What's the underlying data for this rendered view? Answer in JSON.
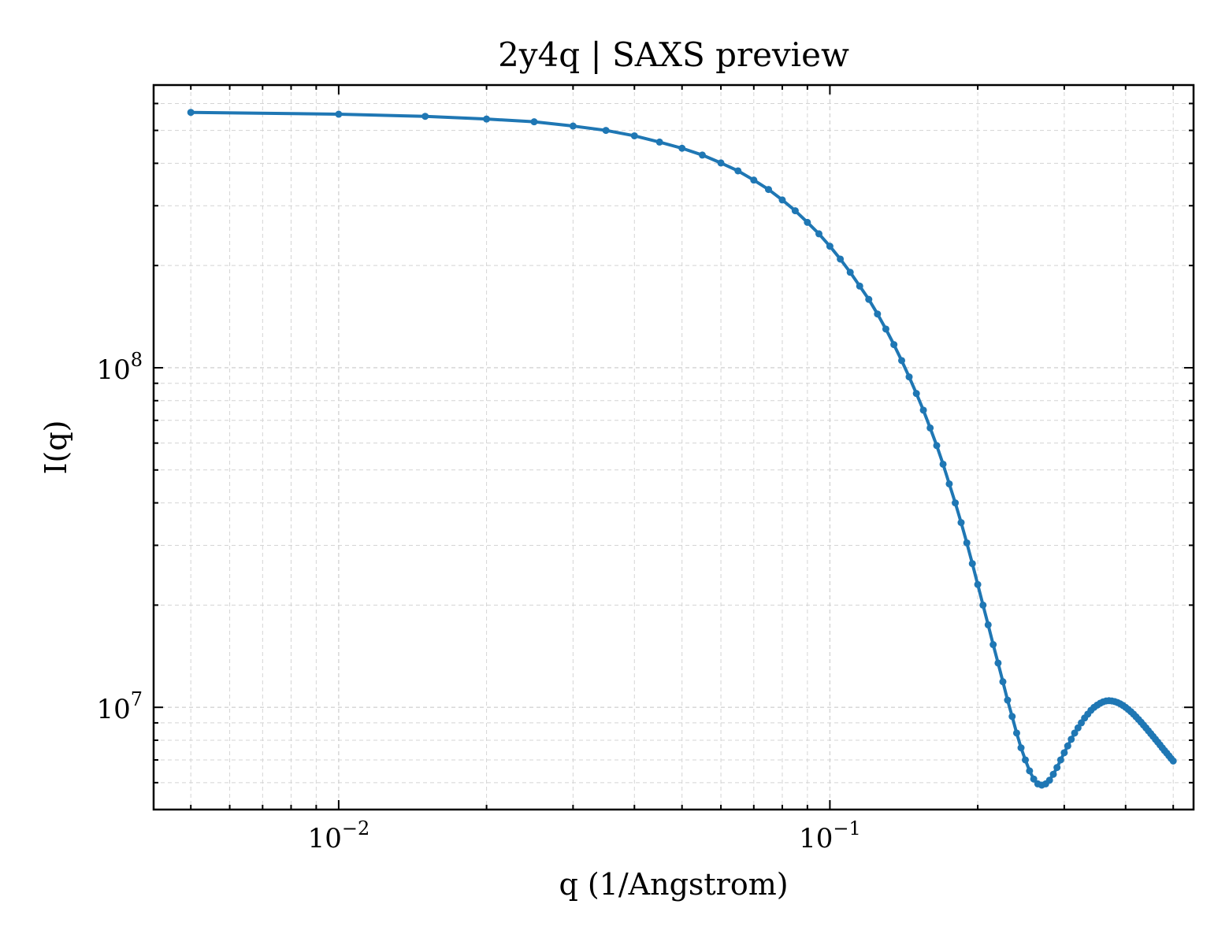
{
  "chart_data": {
    "type": "line",
    "title": "2y4q | SAXS preview",
    "xlabel": "q (1/Angstrom)",
    "ylabel": "I(q)",
    "xscale": "log",
    "yscale": "log",
    "xlim": [
      0.0042,
      0.55
    ],
    "ylim": [
      5000000,
      680000000
    ],
    "grid": true,
    "x_tick_labels": [
      {
        "value": 0.01,
        "base": "10",
        "exp": "−2"
      },
      {
        "value": 0.1,
        "base": "10",
        "exp": "−1"
      }
    ],
    "y_tick_labels": [
      {
        "value": 10000000,
        "base": "10",
        "exp": "7"
      },
      {
        "value": 100000000,
        "base": "10",
        "exp": "8"
      }
    ],
    "series_color": "#1f77b4",
    "series": [
      {
        "x": [
          0.005,
          0.01,
          0.015,
          0.02,
          0.025,
          0.03,
          0.035,
          0.04,
          0.045,
          0.05,
          0.055,
          0.06,
          0.065,
          0.07,
          0.075,
          0.08,
          0.085,
          0.09,
          0.095,
          0.1,
          0.105,
          0.11,
          0.115,
          0.12,
          0.125,
          0.13,
          0.135,
          0.14,
          0.145,
          0.15,
          0.155,
          0.16,
          0.165,
          0.17,
          0.175,
          0.18,
          0.185,
          0.19,
          0.195,
          0.2,
          0.205,
          0.21,
          0.215,
          0.22,
          0.225,
          0.23,
          0.235,
          0.24,
          0.245,
          0.25,
          0.255,
          0.26,
          0.265,
          0.27,
          0.275,
          0.28,
          0.285,
          0.29,
          0.295,
          0.3,
          0.305,
          0.31,
          0.315,
          0.32,
          0.325,
          0.33,
          0.335,
          0.34,
          0.345,
          0.35,
          0.355,
          0.36,
          0.365,
          0.37,
          0.375,
          0.38,
          0.385,
          0.39,
          0.395,
          0.4,
          0.405,
          0.41,
          0.415,
          0.42,
          0.425,
          0.43,
          0.435,
          0.44,
          0.445,
          0.45,
          0.455,
          0.46,
          0.465,
          0.47,
          0.475,
          0.48,
          0.485,
          0.49,
          0.495,
          0.5
        ],
        "y": [
          565000000,
          558000000,
          550000000,
          540000000,
          530000000,
          515000000,
          500000000,
          482000000,
          462000000,
          443000000,
          423000000,
          401000000,
          380000000,
          357000000,
          335000000,
          312000000,
          290000000,
          268000000,
          248000000,
          228000000,
          209000000,
          191000000,
          174000000,
          159000000,
          144000000,
          130000000,
          117000000,
          105000000,
          94000000,
          84000000,
          75000000,
          66500000,
          59000000,
          52000000,
          45500000,
          40000000,
          35000000,
          30500000,
          26500000,
          23000000,
          20000000,
          17500000,
          15300000,
          13500000,
          11900000,
          10500000,
          9400000,
          8400000,
          7600000,
          7000000,
          6500000,
          6150000,
          5950000,
          5900000,
          5950000,
          6100000,
          6350000,
          6650000,
          7000000,
          7350000,
          7700000,
          8050000,
          8400000,
          8700000,
          9000000,
          9300000,
          9550000,
          9800000,
          10000000,
          10150000,
          10280000,
          10380000,
          10440000,
          10460000,
          10440000,
          10400000,
          10330000,
          10240000,
          10130000,
          10000000,
          9860000,
          9710000,
          9550000,
          9380000,
          9210000,
          9040000,
          8870000,
          8700000,
          8530000,
          8370000,
          8210000,
          8050000,
          7900000,
          7750000,
          7600000,
          7460000,
          7330000,
          7200000,
          7070000,
          6950000
        ]
      }
    ]
  }
}
